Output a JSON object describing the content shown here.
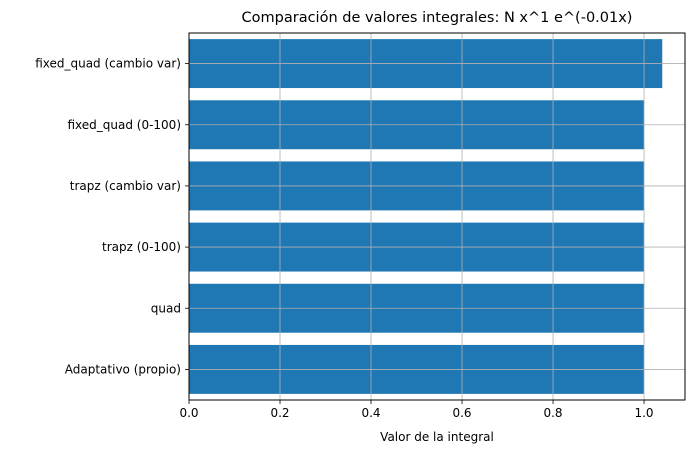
{
  "chart_data": {
    "type": "bar",
    "orientation": "horizontal",
    "title": "Comparación de valores integrales: N x^1 e^(-0.01x)",
    "xlabel": "Valor de la integral",
    "ylabel": "",
    "categories": [
      "Adaptativo (propio)",
      "quad",
      "trapz (0-100)",
      "trapz (cambio var)",
      "fixed_quad (0-100)",
      "fixed_quad (cambio var)"
    ],
    "values": [
      1.0,
      1.0,
      1.0,
      1.0,
      1.0,
      1.04
    ],
    "xlim": [
      0,
      1.09
    ],
    "xticks": [
      0.0,
      0.2,
      0.4,
      0.6,
      0.8,
      1.0
    ],
    "xtick_labels": [
      "0.0",
      "0.2",
      "0.4",
      "0.6",
      "0.8",
      "1.0"
    ],
    "grid": true,
    "bar_color": "#1f77b4",
    "grid_color": "#b0b0b0"
  }
}
